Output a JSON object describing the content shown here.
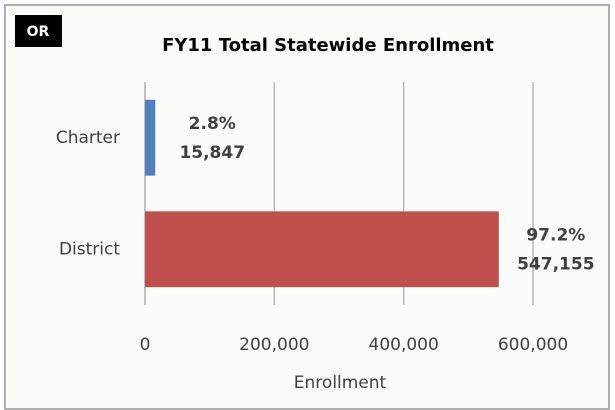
{
  "chart_data": {
    "type": "hbar",
    "badge": "OR",
    "title": "FY11 Total Statewide Enrollment",
    "categories": [
      "Charter",
      "District"
    ],
    "values": [
      15847,
      547155
    ],
    "value_labels": [
      "15,847",
      "547,155"
    ],
    "percent_labels": [
      "2.8%",
      "97.2%"
    ],
    "colors": [
      "#4f81bd",
      "#c0504d"
    ],
    "xlabel": "Enrollment",
    "xlim": [
      0,
      600000
    ],
    "xticks": [
      0,
      {
        "value": 200000,
        "label": "200,000"
      },
      {
        "value": 400000,
        "label": "400,000"
      },
      {
        "value": 600000,
        "label": "600,000"
      }
    ],
    "grid": true
  }
}
